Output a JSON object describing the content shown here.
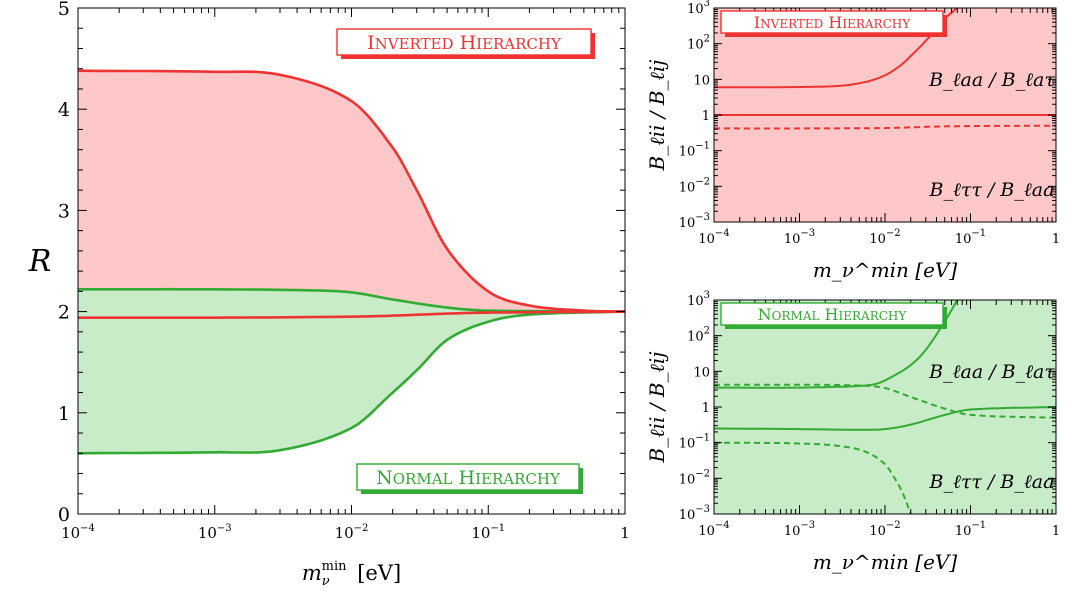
{
  "chart_data": [
    {
      "type": "area",
      "xscale": "log",
      "xlim": [
        0.0001,
        1
      ],
      "ylim": [
        0,
        5
      ],
      "ylabel": "R",
      "xlabel": "m_ν^min [eV]",
      "xlabel_parts": {
        "base": "m",
        "sub": "ν",
        "sup": "min",
        "unit": "[eV]"
      },
      "x_ticks": [
        {
          "value": 0.0001,
          "base": "10",
          "exp": "−4"
        },
        {
          "value": 0.001,
          "base": "10",
          "exp": "−3"
        },
        {
          "value": 0.01,
          "base": "10",
          "exp": "−2"
        },
        {
          "value": 0.1,
          "base": "10",
          "exp": "−1"
        },
        {
          "value": 1,
          "base": "1",
          "exp": ""
        }
      ],
      "y_ticks": [
        "0",
        "1",
        "2",
        "3",
        "4",
        "5"
      ],
      "labels": {
        "inverted": "Inverted hierarchy",
        "normal": "Normal hierarchy"
      },
      "colors": {
        "inverted_line": "#ee3333",
        "inverted_fill": "#ffc8c8",
        "normal_line": "#33aa33",
        "normal_fill": "#c8ebc8"
      },
      "series": [
        {
          "group": "inverted",
          "role": "upper",
          "x": [
            0.0001,
            0.001,
            0.003,
            0.01,
            0.02,
            0.03,
            0.05,
            0.1,
            0.2,
            0.5,
            1
          ],
          "y": [
            4.38,
            4.37,
            4.34,
            4.08,
            3.62,
            3.2,
            2.62,
            2.2,
            2.06,
            2.01,
            2.0
          ]
        },
        {
          "group": "inverted",
          "role": "lower",
          "x": [
            0.0001,
            0.001,
            0.01,
            0.02,
            0.05,
            0.1,
            1
          ],
          "y": [
            1.94,
            1.94,
            1.95,
            1.96,
            1.98,
            1.99,
            2.0
          ]
        },
        {
          "group": "normal",
          "role": "upper",
          "x": [
            0.0001,
            0.001,
            0.005,
            0.01,
            0.02,
            0.05,
            0.1,
            1
          ],
          "y": [
            2.22,
            2.22,
            2.21,
            2.19,
            2.12,
            2.04,
            2.01,
            2.0
          ]
        },
        {
          "group": "normal",
          "role": "lower",
          "x": [
            0.0001,
            0.001,
            0.003,
            0.01,
            0.02,
            0.03,
            0.05,
            0.1,
            0.2,
            1
          ],
          "y": [
            0.6,
            0.61,
            0.63,
            0.85,
            1.2,
            1.42,
            1.72,
            1.9,
            1.97,
            2.0
          ]
        }
      ]
    },
    {
      "type": "area",
      "xscale": "log",
      "yscale": "log",
      "xlim": [
        0.0001,
        1
      ],
      "ylim": [
        0.001,
        1000
      ],
      "xlabel": "m_ν^min [eV]",
      "ylabel": "B_ℓii / B_ℓij",
      "panel_label": "Inverted hierarchy",
      "upper_label": "B_ℓaa / B_ℓaτ",
      "lower_label": "B_ℓττ / B_ℓaa",
      "x_ticks": [
        {
          "value": 0.0001,
          "base": "10",
          "exp": "−4"
        },
        {
          "value": 0.001,
          "base": "10",
          "exp": "−3"
        },
        {
          "value": 0.01,
          "base": "10",
          "exp": "−2"
        },
        {
          "value": 0.1,
          "base": "10",
          "exp": "−1"
        },
        {
          "value": 1,
          "base": "1",
          "exp": ""
        }
      ],
      "y_ticks": [
        {
          "value": 1000,
          "base": "10",
          "exp": "3"
        },
        {
          "value": 100,
          "base": "10",
          "exp": "2"
        },
        {
          "value": 10,
          "base": "10",
          "exp": ""
        },
        {
          "value": 1,
          "base": "1",
          "exp": ""
        },
        {
          "value": 0.1,
          "base": "10",
          "exp": "−1"
        },
        {
          "value": 0.01,
          "base": "10",
          "exp": "−2"
        },
        {
          "value": 0.001,
          "base": "10",
          "exp": "−3"
        }
      ],
      "colors": {
        "line": "#ee3333",
        "fill": "#ffc8c8"
      },
      "series": [
        {
          "role": "upper-solid",
          "style": "solid",
          "x": [
            0.0001,
            0.001,
            0.003,
            0.006,
            0.01,
            0.015,
            0.02,
            0.03,
            0.05,
            0.07
          ],
          "y": [
            6.0,
            6.1,
            6.6,
            8.5,
            13,
            24,
            45,
            120,
            500,
            1000
          ]
        },
        {
          "role": "mid-solid",
          "style": "solid",
          "x": [
            0.0001,
            0.001,
            0.01,
            0.1,
            1
          ],
          "y": [
            1.0,
            1.0,
            1.0,
            1.0,
            1.0
          ]
        },
        {
          "role": "dashed",
          "style": "dashed",
          "x": [
            0.0001,
            0.001,
            0.01,
            0.02,
            0.05,
            0.1,
            1
          ],
          "y": [
            0.42,
            0.42,
            0.43,
            0.45,
            0.48,
            0.49,
            0.5
          ]
        }
      ],
      "fill_range": {
        "x": [
          0.0001,
          1
        ],
        "y": [
          0.001,
          1000
        ]
      }
    },
    {
      "type": "area",
      "xscale": "log",
      "yscale": "log",
      "xlim": [
        0.0001,
        1
      ],
      "ylim": [
        0.001,
        1000
      ],
      "xlabel": "m_ν^min [eV]",
      "ylabel": "B_ℓii / B_ℓij",
      "panel_label": "Normal hierarchy",
      "upper_label": "B_ℓaa / B_ℓaτ",
      "lower_label": "B_ℓττ / B_ℓaa",
      "x_ticks": [
        {
          "value": 0.0001,
          "base": "10",
          "exp": "−4"
        },
        {
          "value": 0.001,
          "base": "10",
          "exp": "−3"
        },
        {
          "value": 0.01,
          "base": "10",
          "exp": "−2"
        },
        {
          "value": 0.1,
          "base": "10",
          "exp": "−1"
        },
        {
          "value": 1,
          "base": "1",
          "exp": ""
        }
      ],
      "y_ticks": [
        {
          "value": 1000,
          "base": "10",
          "exp": "3"
        },
        {
          "value": 100,
          "base": "10",
          "exp": "2"
        },
        {
          "value": 10,
          "base": "10",
          "exp": ""
        },
        {
          "value": 1,
          "base": "1",
          "exp": ""
        },
        {
          "value": 0.1,
          "base": "10",
          "exp": "−1"
        },
        {
          "value": 0.01,
          "base": "10",
          "exp": "−2"
        },
        {
          "value": 0.001,
          "base": "10",
          "exp": "−3"
        }
      ],
      "colors": {
        "line": "#33aa33",
        "fill": "#c8ebc8"
      },
      "series": [
        {
          "role": "upper-solid",
          "style": "solid",
          "x": [
            0.0001,
            0.001,
            0.003,
            0.005,
            0.008,
            0.012,
            0.02,
            0.03,
            0.05,
            0.07
          ],
          "y": [
            3.5,
            3.5,
            3.7,
            3.9,
            4.5,
            7,
            15,
            40,
            250,
            1000
          ]
        },
        {
          "role": "upper-dashed",
          "style": "dashed",
          "x": [
            0.0001,
            0.001,
            0.005,
            0.01,
            0.02,
            0.05,
            0.1,
            1
          ],
          "y": [
            4.2,
            4.2,
            4.0,
            3.4,
            1.9,
            0.9,
            0.6,
            0.5
          ]
        },
        {
          "role": "lower-solid",
          "style": "solid",
          "x": [
            0.0001,
            0.001,
            0.005,
            0.01,
            0.02,
            0.05,
            0.1,
            1
          ],
          "y": [
            0.25,
            0.24,
            0.23,
            0.24,
            0.32,
            0.6,
            0.85,
            1.0
          ]
        },
        {
          "role": "lower-dashed",
          "style": "dashed",
          "x": [
            0.0001,
            0.001,
            0.003,
            0.006,
            0.01,
            0.013,
            0.016,
            0.018,
            0.02
          ],
          "y": [
            0.1,
            0.095,
            0.08,
            0.055,
            0.025,
            0.01,
            0.004,
            0.002,
            0.001
          ]
        }
      ],
      "fill_range": {
        "x": [
          0.0001,
          1
        ],
        "y": [
          0.001,
          1000
        ]
      }
    }
  ]
}
